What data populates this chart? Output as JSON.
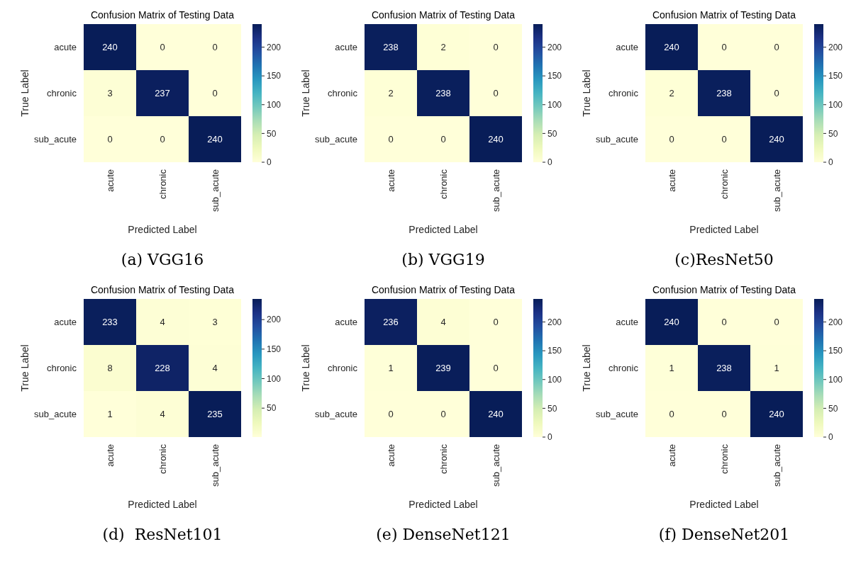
{
  "chart_data": [
    {
      "type": "heatmap",
      "title": "Confusion Matrix of Testing Data",
      "xlabel": "Predicted Label",
      "ylabel": "True Label",
      "categories": [
        "acute",
        "chronic",
        "sub_acute"
      ],
      "y_categories": [
        "acute",
        "chronic",
        "sub_acute"
      ],
      "cells": [
        [
          240,
          0,
          0
        ],
        [
          3,
          237,
          0
        ],
        [
          0,
          0,
          240
        ]
      ],
      "data_labels": true,
      "clim": [
        0,
        240
      ],
      "cticks": [
        0,
        50,
        100,
        150,
        200
      ],
      "annotations": [
        "(a) VGG16"
      ]
    },
    {
      "type": "heatmap",
      "title": "Confusion Matrix of Testing Data",
      "xlabel": "Predicted Label",
      "ylabel": "True Label",
      "categories": [
        "acute",
        "chronic",
        "sub_acute"
      ],
      "y_categories": [
        "acute",
        "chronic",
        "sub_acute"
      ],
      "cells": [
        [
          238,
          2,
          0
        ],
        [
          2,
          238,
          0
        ],
        [
          0,
          0,
          240
        ]
      ],
      "data_labels": true,
      "clim": [
        0,
        240
      ],
      "cticks": [
        0,
        50,
        100,
        150,
        200
      ],
      "annotations": [
        "(b) VGG19"
      ]
    },
    {
      "type": "heatmap",
      "title": "Confusion Matrix of Testing Data",
      "xlabel": "Predicted Label",
      "ylabel": "True Label",
      "categories": [
        "acute",
        "chronic",
        "sub_acute"
      ],
      "y_categories": [
        "acute",
        "chronic",
        "sub_acute"
      ],
      "cells": [
        [
          240,
          0,
          0
        ],
        [
          2,
          238,
          0
        ],
        [
          0,
          0,
          240
        ]
      ],
      "data_labels": true,
      "clim": [
        0,
        240
      ],
      "cticks": [
        0,
        50,
        100,
        150,
        200
      ],
      "annotations": [
        "(c)ResNet50"
      ]
    },
    {
      "type": "heatmap",
      "title": "Confusion Matrix of Testing Data",
      "xlabel": "Predicted Label",
      "ylabel": "True Label",
      "categories": [
        "acute",
        "chronic",
        "sub_acute"
      ],
      "y_categories": [
        "acute",
        "chronic",
        "sub_acute"
      ],
      "cells": [
        [
          233,
          4,
          3
        ],
        [
          8,
          228,
          4
        ],
        [
          1,
          4,
          235
        ]
      ],
      "data_labels": true,
      "clim": [
        1,
        235
      ],
      "cticks": [
        50,
        100,
        150,
        200
      ],
      "annotations": [
        "(d)  ResNet101"
      ]
    },
    {
      "type": "heatmap",
      "title": "Confusion Matrix of Testing Data",
      "xlabel": "Predicted Label",
      "ylabel": "True Label",
      "categories": [
        "acute",
        "chronic",
        "sub_acute"
      ],
      "y_categories": [
        "acute",
        "chronic",
        "sub_acute"
      ],
      "cells": [
        [
          236,
          4,
          0
        ],
        [
          1,
          239,
          0
        ],
        [
          0,
          0,
          240
        ]
      ],
      "data_labels": true,
      "clim": [
        0,
        240
      ],
      "cticks": [
        0,
        50,
        100,
        150,
        200
      ],
      "annotations": [
        "(e) DenseNet121"
      ]
    },
    {
      "type": "heatmap",
      "title": "Confusion Matrix of Testing Data",
      "xlabel": "Predicted Label",
      "ylabel": "True Label",
      "categories": [
        "acute",
        "chronic",
        "sub_acute"
      ],
      "y_categories": [
        "acute",
        "chronic",
        "sub_acute"
      ],
      "cells": [
        [
          240,
          0,
          0
        ],
        [
          1,
          238,
          1
        ],
        [
          0,
          0,
          240
        ]
      ],
      "data_labels": true,
      "clim": [
        0,
        240
      ],
      "cticks": [
        0,
        50,
        100,
        150,
        200
      ],
      "annotations": [
        "(f) DenseNet201"
      ]
    }
  ]
}
